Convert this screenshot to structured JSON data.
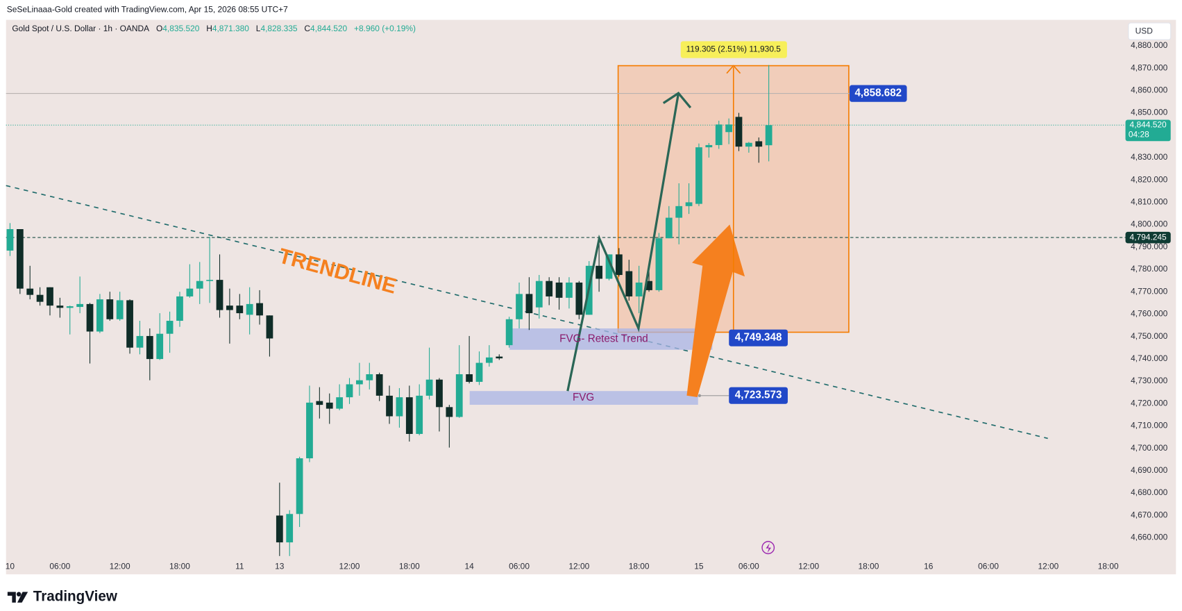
{
  "credit": "SeSeLinaaa-Gold created with TradingView.com, Apr 15, 2026 08:55 UTC+7",
  "brand": "TradingView",
  "chart_data": {
    "type": "candlestick",
    "title": "Gold Spot / U.S. Dollar · 1h · OANDA",
    "ohlc_header": [
      {
        "key": "O",
        "value": "4,835.520"
      },
      {
        "key": "H",
        "value": "4,871.380"
      },
      {
        "key": "L",
        "value": "4,828.335"
      },
      {
        "key": "C",
        "value": "4,844.520"
      }
    ],
    "change": "+8.960 (+0.19%)",
    "currency": "USD",
    "up_color": "#22ab94",
    "down_color": "#0f2d28",
    "open": [
      4788.4,
      4798.0,
      4771.4,
      4768.6,
      4772.0,
      4763.8,
      4762.8,
      4763.2,
      4764.5,
      4752.2,
      4766.6,
      4757.7,
      4766.2,
      4745.0,
      4750.2,
      4739.9,
      4751.2,
      4757.0,
      4767.9,
      4771.4,
      4774.8,
      4775.3,
      4763.8,
      4763.8,
      4759.7,
      4764.9,
      4759.4,
      4669.9,
      4657.9,
      4670.6,
      4695.5,
      4721.1,
      4720.4,
      4717.7,
      4722.8,
      4728.6,
      4730.4,
      4733.1,
      4723.5,
      4714.3,
      4722.8,
      4706.4,
      4723.5,
      4730.7,
      4718.4,
      4714.0,
      4733.1,
      4729.7,
      4738.2,
      4741.0,
      4746.1,
      4757.7,
      4769.0,
      4763.0,
      4774.8,
      4774.1,
      4767.3,
      4774.1,
      4759.7,
      4781.6,
      4775.8,
      4786.7,
      4779.2,
      4767.9,
      4774.8,
      4770.7,
      4793.9,
      4803.1,
      4808.3,
      4809.3,
      4834.6,
      4835.6,
      4841.4,
      4848.2,
      4834.9,
      4837.3,
      4835.52
    ],
    "high": [
      4800.7,
      4798.0,
      4781.6,
      4772.0,
      4772.0,
      4767.3,
      4763.8,
      4776.8,
      4765.0,
      4769.0,
      4770.0,
      4770.0,
      4766.6,
      4757.0,
      4753.6,
      4760.4,
      4761.1,
      4770.0,
      4782.3,
      4783.3,
      4794.6,
      4786.7,
      4771.4,
      4769.0,
      4772.0,
      4770.7,
      4759.4,
      4684.6,
      4672.3,
      4696.2,
      4728.0,
      4727.3,
      4724.5,
      4728.6,
      4731.4,
      4738.2,
      4738.2,
      4733.8,
      4728.0,
      4726.9,
      4728.0,
      4728.6,
      4745.0,
      4731.4,
      4719.4,
      4746.1,
      4750.2,
      4743.3,
      4746.1,
      4742.0,
      4758.8,
      4774.1,
      4776.5,
      4777.5,
      4776.5,
      4776.5,
      4776.5,
      4774.8,
      4783.7,
      4795.0,
      4786.7,
      4789.5,
      4784.3,
      4781.6,
      4779.2,
      4796.3,
      4808.3,
      4818.5,
      4818.5,
      4836.3,
      4836.5,
      4846.5,
      4847.5,
      4850.0,
      4837.0,
      4839.0,
      4871.38
    ],
    "low": [
      4786.0,
      4769.0,
      4766.6,
      4763.8,
      4759.4,
      4758.4,
      4750.9,
      4760.4,
      4737.9,
      4751.5,
      4757.0,
      4757.0,
      4742.3,
      4742.0,
      4730.4,
      4739.5,
      4742.7,
      4754.3,
      4767.3,
      4764.5,
      4765.0,
      4758.4,
      4746.8,
      4757.7,
      4750.9,
      4755.3,
      4741.0,
      4651.8,
      4651.8,
      4664.8,
      4693.8,
      4713.3,
      4710.9,
      4717.0,
      4719.8,
      4723.5,
      4726.3,
      4721.1,
      4710.9,
      4709.2,
      4703.0,
      4705.8,
      4721.8,
      4707.5,
      4700.3,
      4713.6,
      4729.0,
      4728.3,
      4736.5,
      4739.5,
      4745.0,
      4753.6,
      4752.9,
      4758.0,
      4764.0,
      4762.0,
      4762.5,
      4757.7,
      4759.7,
      4770.0,
      4775.1,
      4776.8,
      4766.0,
      4760.4,
      4770.0,
      4770.0,
      4793.9,
      4791.2,
      4804.8,
      4808.3,
      4830.0,
      4833.9,
      4836.0,
      4832.9,
      4832.2,
      4827.7,
      4828.335
    ],
    "close": [
      4798.0,
      4771.4,
      4768.6,
      4765.5,
      4763.8,
      4762.8,
      4763.5,
      4764.5,
      4752.2,
      4766.6,
      4757.7,
      4766.2,
      4745.0,
      4750.2,
      4739.9,
      4751.2,
      4757.0,
      4767.9,
      4771.4,
      4774.8,
      4775.3,
      4761.8,
      4761.8,
      4760.4,
      4764.5,
      4759.4,
      4749.1,
      4657.9,
      4670.6,
      4695.5,
      4720.4,
      4719.4,
      4717.7,
      4722.8,
      4728.6,
      4730.4,
      4733.1,
      4723.5,
      4714.3,
      4722.8,
      4706.4,
      4723.5,
      4730.7,
      4718.4,
      4714.0,
      4733.1,
      4729.7,
      4738.2,
      4740.6,
      4740.2,
      4757.7,
      4769.0,
      4760.4,
      4774.8,
      4767.9,
      4767.3,
      4774.1,
      4759.7,
      4781.6,
      4775.8,
      4786.7,
      4777.5,
      4767.9,
      4774.1,
      4770.7,
      4793.9,
      4803.1,
      4808.3,
      4810.0,
      4834.6,
      4835.6,
      4844.8,
      4844.8,
      4834.9,
      4836.6,
      4834.9,
      4844.52
    ],
    "xlim": [
      -0.4,
      111.5
    ],
    "xticks": [
      {
        "value": 0,
        "label": "10"
      },
      {
        "value": 5,
        "label": "06:00"
      },
      {
        "value": 11,
        "label": "12:00"
      },
      {
        "value": 17,
        "label": "18:00"
      },
      {
        "value": 23,
        "label": "11"
      },
      {
        "value": 27,
        "label": "13"
      },
      {
        "value": 34,
        "label": "12:00"
      },
      {
        "value": 40,
        "label": "18:00"
      },
      {
        "value": 46,
        "label": "14"
      },
      {
        "value": 51,
        "label": "06:00"
      },
      {
        "value": 57,
        "label": "12:00"
      },
      {
        "value": 63,
        "label": "18:00"
      },
      {
        "value": 69,
        "label": "15"
      },
      {
        "value": 74,
        "label": "06:00"
      },
      {
        "value": 80,
        "label": "12:00"
      },
      {
        "value": 86,
        "label": "18:00"
      },
      {
        "value": 92,
        "label": "16"
      },
      {
        "value": 98,
        "label": "06:00"
      },
      {
        "value": 104,
        "label": "12:00"
      },
      {
        "value": 110,
        "label": "18:00"
      }
    ],
    "ylim": [
      4643.6,
      4891.6
    ],
    "yticks": [
      {
        "value": 4660,
        "label": "4,660.000"
      },
      {
        "value": 4670,
        "label": "4,670.000"
      },
      {
        "value": 4680,
        "label": "4,680.000"
      },
      {
        "value": 4690,
        "label": "4,690.000"
      },
      {
        "value": 4700,
        "label": "4,700.000"
      },
      {
        "value": 4710,
        "label": "4,710.000"
      },
      {
        "value": 4720,
        "label": "4,720.000"
      },
      {
        "value": 4730,
        "label": "4,730.000"
      },
      {
        "value": 4740,
        "label": "4,740.000"
      },
      {
        "value": 4750,
        "label": "4,750.000"
      },
      {
        "value": 4760,
        "label": "4,760.000"
      },
      {
        "value": 4770,
        "label": "4,770.000"
      },
      {
        "value": 4780,
        "label": "4,780.000"
      },
      {
        "value": 4790,
        "label": "4,790.000"
      },
      {
        "value": 4800,
        "label": "4,800.000"
      },
      {
        "value": 4810,
        "label": "4,810.000"
      },
      {
        "value": 4820,
        "label": "4,820.000"
      },
      {
        "value": 4830,
        "label": "4,830.000"
      },
      {
        "value": 4850,
        "label": "4,850.000"
      },
      {
        "value": 4860,
        "label": "4,860.000"
      },
      {
        "value": 4870,
        "label": "4,870.000"
      },
      {
        "value": 4880,
        "label": "4,880.000"
      }
    ],
    "levels": [
      {
        "value": 4858.682,
        "label": "4,858.682"
      },
      {
        "value": 4794.245,
        "label": "4,794.245"
      },
      {
        "value": 4844.52,
        "label": "4,844.520",
        "countdown": "04:28"
      },
      {
        "value": 4749.348,
        "label": "4,749.348"
      },
      {
        "value": 4723.573,
        "label": "4,723.573"
      }
    ],
    "annotations": {
      "trendline": "TRENDLINE",
      "fvg_retest": "FVG- Retest Trend",
      "fvg": "FVG",
      "range": "119.305 (2.51%) 11,930.5"
    }
  }
}
